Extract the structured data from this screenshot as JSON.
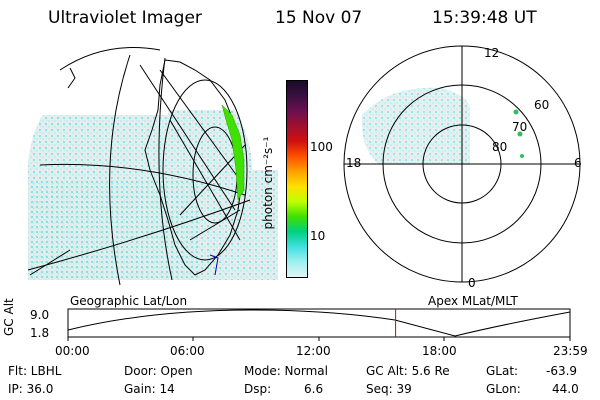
{
  "header": {
    "title": "Ultraviolet Imager",
    "date": "15 Nov 07",
    "time": "15:39:48 UT"
  },
  "colorbar": {
    "unit_label": "photon cm⁻²s⁻¹",
    "ticks": [
      "100",
      "10"
    ],
    "colors": [
      "#1a0a2a",
      "#3a1040",
      "#6a1050",
      "#a01030",
      "#d01010",
      "#ff5000",
      "#ffa000",
      "#ffe000",
      "#c0ff00",
      "#40e000",
      "#00d080",
      "#40e0e0",
      "#a0f0f0",
      "#e0f5f5"
    ]
  },
  "left_panel": {
    "caption": "Geographic Lat/Lon"
  },
  "right_panel": {
    "caption": "Apex MLat/MLT",
    "mlt_labels": {
      "top": "12",
      "bottom": "0",
      "left": "18",
      "right": "6"
    },
    "lat_labels": [
      "60",
      "70",
      "80"
    ]
  },
  "altitude_plot": {
    "axis_title": "GC Alt",
    "y_ticks": [
      "9.0",
      "1.8"
    ],
    "x_ticks": [
      "00:00",
      "06:00",
      "12:00",
      "18:00",
      "23:59"
    ],
    "current_time_fraction": 0.6526,
    "marker_color": "#e00000"
  },
  "info": {
    "flt": "Flt: LBHL",
    "ip": "IP: 36.0",
    "door": "Door: Open",
    "gain": "Gain: 14",
    "mode": "Mode: Normal",
    "dsp_label": "Dsp:",
    "dsp_value": "6.6",
    "gc_alt": "GC Alt: 5.6 Re",
    "seq": "Seq: 39",
    "glat_label": "GLat:",
    "glat_value": "-63.9",
    "glon_label": "GLon:",
    "glon_value": "44.0"
  }
}
